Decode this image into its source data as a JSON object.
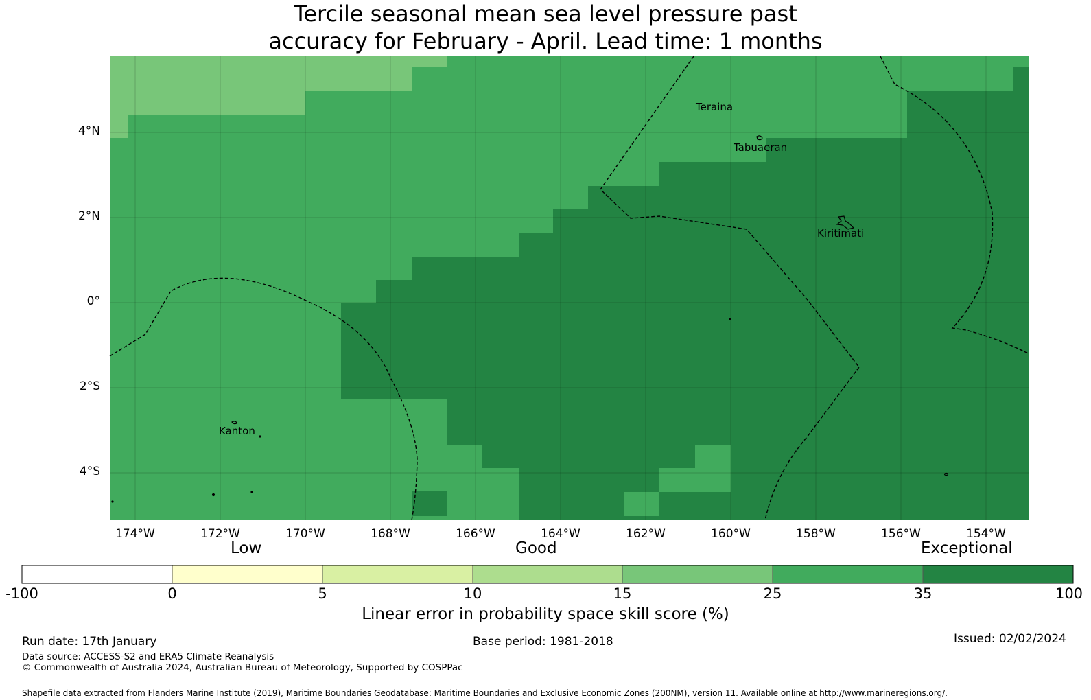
{
  "title": {
    "line1": "Tercile seasonal mean sea level pressure past",
    "line2": "accuracy for February - April. Lead time: 1 months"
  },
  "map": {
    "lat_ticks": [
      "4°N",
      "2°N",
      "0°",
      "2°S",
      "4°S"
    ],
    "lon_ticks": [
      "174°W",
      "172°W",
      "170°W",
      "168°W",
      "166°W",
      "164°W",
      "162°W",
      "160°W",
      "158°W",
      "156°W",
      "154°W"
    ],
    "places": [
      {
        "name": "Teraina"
      },
      {
        "name": "Tabuaeran"
      },
      {
        "name": "Kiritimati"
      },
      {
        "name": "Kanton"
      }
    ],
    "colors": {
      "c15_25": "#78c679",
      "c25_35": "#41ab5d",
      "c35_100": "#238443"
    }
  },
  "legend": {
    "categories": [
      "Low",
      "Good",
      "Exceptional"
    ],
    "ticks": [
      "-100",
      "0",
      "5",
      "10",
      "15",
      "25",
      "35",
      "100"
    ],
    "colors": [
      "#ffffff",
      "#ffffcc",
      "#d9f0a3",
      "#addd8e",
      "#78c679",
      "#41ab5d",
      "#238443"
    ],
    "title": "Linear error in probability space skill score (%)"
  },
  "footer": {
    "run_date": "Run date: 17th January",
    "base_period": "Base period: 1981-2018",
    "issued": "Issued: 02/02/2024",
    "data_source": "Data source: ACCESS-S2 and ERA5 Climate Reanalysis",
    "copyright": "© Commonwealth of Australia 2024, Australian Bureau of Meteorology, Supported by COSPPac",
    "shapefile": "Shapefile data extracted from Flanders Marine Institute (2019), Maritime Boundaries Geodatabase: Maritime Boundaries and Exclusive Economic Zones (200NM), version 11. Available online at http://www.marineregions.org/."
  }
}
